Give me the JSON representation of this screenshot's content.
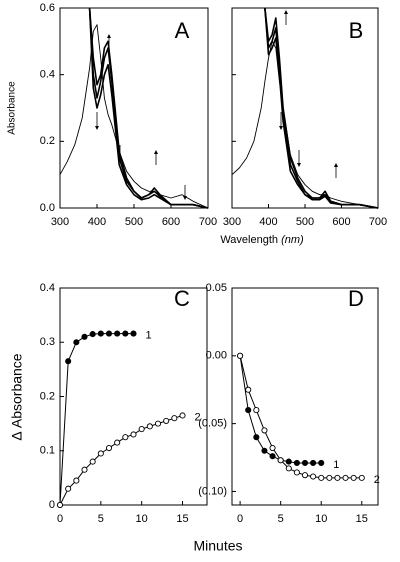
{
  "chart_data": [
    {
      "type": "line",
      "title": "A",
      "ylabel": "Absorbance",
      "xlabel": "Wavelength",
      "xlabel_unit": "(nm)",
      "xlim": [
        300,
        700
      ],
      "ylim": [
        0,
        0.6
      ],
      "xticks": [
        300,
        400,
        500,
        600,
        700
      ],
      "yticks": [
        {
          "value": 0,
          "label": "0.0"
        },
        0.2,
        0.4,
        0.6
      ],
      "ytick_labels": true,
      "x": [
        300,
        320,
        340,
        360,
        380,
        390,
        400,
        410,
        420,
        430,
        440,
        460,
        480,
        500,
        520,
        540,
        555,
        570,
        600,
        630,
        660,
        700
      ],
      "series": [
        {
          "color": "#000000",
          "width": 0.9,
          "values": [
            0.1,
            0.14,
            0.19,
            0.27,
            0.42,
            0.53,
            0.55,
            0.45,
            0.33,
            0.28,
            0.25,
            0.17,
            0.11,
            0.08,
            0.06,
            0.05,
            0.05,
            0.04,
            0.03,
            0.04,
            0.02,
            0.0
          ]
        },
        {
          "color": "#000000",
          "width": 1.6,
          "values": [
            null,
            null,
            null,
            null,
            0.6,
            0.45,
            0.37,
            0.4,
            0.48,
            0.5,
            0.4,
            0.17,
            0.09,
            0.05,
            0.03,
            0.04,
            0.06,
            0.04,
            0.01,
            0.01,
            0.01,
            0.0
          ]
        },
        {
          "color": "#000000",
          "width": 1.6,
          "values": [
            null,
            null,
            null,
            null,
            0.6,
            0.4,
            0.33,
            0.38,
            0.45,
            0.48,
            0.38,
            0.15,
            0.08,
            0.05,
            0.03,
            0.04,
            0.05,
            0.035,
            0.01,
            0.01,
            0.01,
            0.0
          ]
        },
        {
          "color": "#000000",
          "width": 1.6,
          "values": [
            null,
            null,
            null,
            null,
            0.6,
            0.36,
            0.3,
            0.34,
            0.4,
            0.43,
            0.34,
            0.13,
            0.07,
            0.04,
            0.025,
            0.03,
            0.04,
            0.03,
            0.01,
            0.01,
            0.01,
            0.0
          ]
        }
      ]
    },
    {
      "type": "line",
      "title": "B",
      "xlim": [
        300,
        700
      ],
      "ylim": [
        0,
        0.6
      ],
      "xticks": [
        300,
        400,
        500,
        600,
        700
      ],
      "yticks": [
        0,
        0.2,
        0.4,
        0.6
      ],
      "ytick_labels": false,
      "x": [
        300,
        320,
        340,
        360,
        380,
        390,
        400,
        410,
        420,
        430,
        440,
        460,
        480,
        500,
        520,
        540,
        555,
        570,
        600,
        650,
        700
      ],
      "series": [
        {
          "color": "#000000",
          "width": 0.9,
          "values": [
            0.1,
            0.12,
            0.15,
            0.2,
            0.3,
            0.38,
            0.45,
            0.5,
            0.48,
            0.38,
            0.3,
            0.16,
            0.1,
            0.07,
            0.05,
            0.04,
            0.04,
            0.03,
            0.02,
            0.01,
            0.0
          ]
        },
        {
          "color": "#000000",
          "width": 1.6,
          "values": [
            null,
            null,
            null,
            null,
            null,
            0.6,
            0.5,
            0.52,
            0.57,
            0.45,
            0.3,
            0.15,
            0.09,
            0.05,
            0.03,
            0.03,
            0.05,
            0.02,
            0.01,
            0.01,
            0.0
          ]
        },
        {
          "color": "#000000",
          "width": 1.6,
          "values": [
            null,
            null,
            null,
            null,
            null,
            0.6,
            0.48,
            0.5,
            0.54,
            0.42,
            0.28,
            0.13,
            0.08,
            0.04,
            0.03,
            0.03,
            0.04,
            0.02,
            0.01,
            0.01,
            0.0
          ]
        },
        {
          "color": "#000000",
          "width": 1.6,
          "values": [
            null,
            null,
            null,
            null,
            null,
            0.6,
            0.46,
            0.48,
            0.51,
            0.4,
            0.26,
            0.11,
            0.07,
            0.04,
            0.025,
            0.025,
            0.035,
            0.015,
            0.01,
            0.01,
            0.0
          ]
        }
      ]
    },
    {
      "type": "line",
      "title": "C",
      "ylabel": "Δ Absorbance",
      "xlabel": "Minutes",
      "xlim": [
        0,
        18
      ],
      "ylim": [
        0,
        0.4
      ],
      "xticks": [
        0,
        5,
        10,
        15
      ],
      "yticks": [
        0,
        0.1,
        0.2,
        0.3,
        0.4
      ],
      "ytick_labels": true,
      "series": [
        {
          "name": "1",
          "color": "#000000",
          "width": 1,
          "marker": "filled",
          "x": [
            0,
            1,
            2,
            3,
            4,
            5,
            6,
            7,
            8,
            9
          ],
          "values": [
            0,
            0.265,
            0.3,
            0.31,
            0.315,
            0.316,
            0.316,
            0.316,
            0.316,
            0.316
          ]
        },
        {
          "name": "2",
          "color": "#000000",
          "width": 1,
          "marker": "open",
          "x": [
            0,
            1,
            2,
            3,
            4,
            5,
            6,
            7,
            8,
            9,
            10,
            11,
            12,
            13,
            14,
            15
          ],
          "values": [
            0,
            0.03,
            0.045,
            0.065,
            0.08,
            0.095,
            0.105,
            0.115,
            0.125,
            0.13,
            0.14,
            0.145,
            0.15,
            0.155,
            0.16,
            0.165
          ]
        }
      ]
    },
    {
      "type": "line",
      "title": "D",
      "xlim": [
        -1,
        17
      ],
      "ylim": [
        -0.11,
        0.05
      ],
      "xticks": [
        0,
        5,
        10,
        15
      ],
      "yticks": [
        {
          "value": 0.05,
          "label": "0.05"
        },
        {
          "value": 0,
          "label": "0.00"
        },
        {
          "value": -0.05,
          "label": "(0.05)"
        },
        {
          "value": -0.1,
          "label": "(0.10)"
        }
      ],
      "ytick_labels": true,
      "series": [
        {
          "name": "1",
          "color": "#000000",
          "width": 1,
          "marker": "filled",
          "x": [
            0,
            1,
            2,
            3,
            4,
            5,
            6,
            7,
            8,
            9,
            10
          ],
          "values": [
            0,
            -0.04,
            -0.06,
            -0.07,
            -0.074,
            -0.077,
            -0.078,
            -0.079,
            -0.079,
            -0.079,
            -0.079
          ]
        },
        {
          "name": "2",
          "color": "#000000",
          "width": 1,
          "marker": "open",
          "x": [
            0,
            1,
            2,
            3,
            4,
            5,
            6,
            7,
            8,
            9,
            10,
            11,
            12,
            13,
            14,
            15
          ],
          "values": [
            0,
            -0.025,
            -0.04,
            -0.055,
            -0.068,
            -0.077,
            -0.083,
            -0.086,
            -0.088,
            -0.089,
            -0.09,
            -0.09,
            -0.09,
            -0.09,
            -0.09,
            -0.09
          ]
        }
      ]
    }
  ]
}
